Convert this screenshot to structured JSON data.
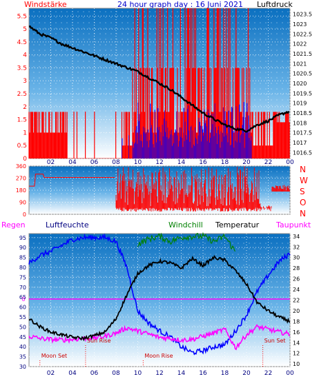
{
  "header": {
    "left_label": "Windstärke",
    "title": "24 hour graph day : 16 Juni 2021",
    "right_label": "Luftdruck"
  },
  "colors": {
    "panel_top": "#0a78c8",
    "panel_bottom": "#ffffff",
    "wind": "#ff0000",
    "gust": "#0000ff",
    "pressure": "#000000",
    "humidity": "#0000ff",
    "windchill": "#008000",
    "temperature": "#000000",
    "dewpoint": "#ff00ff",
    "label_red": "#ff0000",
    "label_blue": "#000080",
    "label_magenta": "#ff00ff",
    "label_green": "#008000"
  },
  "legend": {
    "regen": "Regen",
    "luftfeuchte": "Luftfeuchte",
    "windchill": "Windchill",
    "temperatur": "Temperatur",
    "taupunkt": "Taupunkt"
  },
  "compass": [
    "N",
    "W",
    "S",
    "O",
    "N"
  ],
  "annotations": {
    "moon_set": "Moon Set",
    "sun_rise": "Sun Rise",
    "moon_rise": "Moon Rise",
    "sun_set": "Sun Set"
  },
  "chart_data": [
    {
      "type": "line",
      "title": "24 hour graph day : 16 Juni 2021",
      "x_ticks": [
        "02",
        "04",
        "06",
        "08",
        "10",
        "12",
        "14",
        "16",
        "18",
        "20",
        "22",
        "00"
      ],
      "y_left_label": "Windstärke",
      "y_left_ticks": [
        "0",
        "0.5",
        "1",
        "1.5",
        "2",
        "2.5",
        "3",
        "3.5",
        "4",
        "4.5",
        "5",
        "5.5"
      ],
      "y_left_lim": [
        0,
        5.8
      ],
      "y_right_label": "Luftdruck",
      "y_right_ticks": [
        "1016.5",
        "1017",
        "1017.5",
        "1018",
        "1018.5",
        "1019",
        "1019.5",
        "1020",
        "1020.5",
        "1021",
        "1021.5",
        "1022",
        "1022.5",
        "1023",
        "1023.5"
      ],
      "y_right_lim": [
        1016.2,
        1023.8
      ],
      "series": [
        {
          "name": "Luftdruck",
          "x_hours": [
            0,
            1,
            2,
            3,
            4,
            5,
            6,
            7,
            8,
            9,
            10,
            11,
            12,
            13,
            14,
            15,
            16,
            17,
            18,
            19,
            20,
            21,
            22,
            23,
            24
          ],
          "values": [
            1022.9,
            1022.5,
            1022.3,
            1022.0,
            1021.8,
            1021.6,
            1021.4,
            1021.2,
            1021.0,
            1020.8,
            1020.6,
            1020.3,
            1020.0,
            1019.7,
            1019.3,
            1018.9,
            1018.5,
            1018.2,
            1017.9,
            1017.7,
            1017.6,
            1017.9,
            1018.1,
            1018.4,
            1018.6
          ]
        }
      ]
    },
    {
      "type": "line",
      "title": "",
      "y_left_ticks": [
        "0",
        "90",
        "180",
        "270",
        "360"
      ],
      "y_left_lim": [
        0,
        360
      ],
      "compass_labels": [
        "N",
        "W",
        "S",
        "O",
        "N"
      ],
      "series": [
        {
          "name": "",
          "x_hours": [
            0,
            0.5,
            1,
            1.2,
            2,
            4,
            6,
            7.9,
            8.0,
            24
          ],
          "values": [
            210,
            210,
            300,
            300,
            280,
            280,
            280,
            280,
            60,
            60
          ]
        }
      ]
    },
    {
      "type": "line",
      "title": "",
      "x_ticks": [
        "02",
        "04",
        "06",
        "08",
        "10",
        "12",
        "14",
        "16",
        "18",
        "20",
        "22",
        "00"
      ],
      "y_left_ticks": [
        "30",
        "35",
        "40",
        "45",
        "50",
        "55",
        "60",
        "65",
        "70",
        "75",
        "80",
        "85",
        "90",
        "95"
      ],
      "y_left_lim": [
        30,
        97
      ],
      "y_right_ticks": [
        "10",
        "12",
        "14",
        "16",
        "18",
        "20",
        "22",
        "24",
        "26",
        "28",
        "30",
        "32",
        "34"
      ],
      "y_right_lim": [
        9.5,
        34.5
      ],
      "rain_marker": "0",
      "series": [
        {
          "name": "Luftfeuchte",
          "axis": "left",
          "x_hours": [
            0,
            1,
            2,
            3,
            4,
            5,
            6,
            7,
            8,
            9,
            10,
            11,
            12,
            13,
            14,
            15,
            16,
            17,
            18,
            19,
            20,
            21,
            22,
            23,
            24
          ],
          "values": [
            82,
            86,
            88,
            91,
            94,
            95,
            95,
            95,
            93,
            80,
            58,
            52,
            48,
            45,
            40,
            37,
            38,
            40,
            41,
            48,
            56,
            68,
            76,
            83,
            87
          ]
        },
        {
          "name": "Temperatur",
          "axis": "right",
          "x_hours": [
            0,
            1,
            2,
            3,
            4,
            5,
            6,
            7,
            8,
            9,
            10,
            11,
            12,
            13,
            14,
            15,
            16,
            17,
            18,
            19,
            20,
            21,
            22,
            23,
            24
          ],
          "values": [
            18.5,
            17.0,
            16.0,
            15.5,
            15.0,
            14.8,
            15.3,
            16.0,
            18.5,
            23.0,
            27.0,
            28.5,
            29.3,
            29.0,
            28.0,
            29.8,
            28.5,
            30.0,
            29.5,
            27.5,
            25.0,
            21.5,
            20.0,
            18.8,
            18.0
          ]
        },
        {
          "name": "Windchill",
          "axis": "right",
          "x_hours": [
            10,
            11,
            12,
            13,
            14,
            15,
            16,
            17,
            18,
            19
          ],
          "values": [
            32.5,
            33.5,
            34.0,
            33.0,
            33.8,
            34.0,
            34.0,
            33.0,
            34.0,
            31.0
          ]
        },
        {
          "name": "Taupunkt",
          "axis": "right",
          "x_hours": [
            0,
            1,
            2,
            3,
            4,
            5,
            6,
            7,
            8,
            9,
            10,
            11,
            12,
            13,
            14,
            15,
            16,
            17,
            18,
            19,
            20,
            21,
            22,
            23,
            24
          ],
          "values": [
            15.2,
            14.8,
            14.6,
            14.5,
            14.6,
            14.8,
            14.9,
            15.2,
            15.8,
            16.8,
            16.2,
            15.6,
            15.0,
            14.8,
            14.5,
            14.6,
            15.2,
            15.8,
            16.5,
            13.0,
            15.5,
            17.0,
            16.5,
            16.0,
            15.6
          ]
        }
      ],
      "events": [
        {
          "label": "Moon Set",
          "hour": 1.0
        },
        {
          "label": "Sun Rise",
          "hour": 5.2
        },
        {
          "label": "Moon Rise",
          "hour": 10.5
        },
        {
          "label": "Sun Set",
          "hour": 21.5
        }
      ]
    }
  ]
}
